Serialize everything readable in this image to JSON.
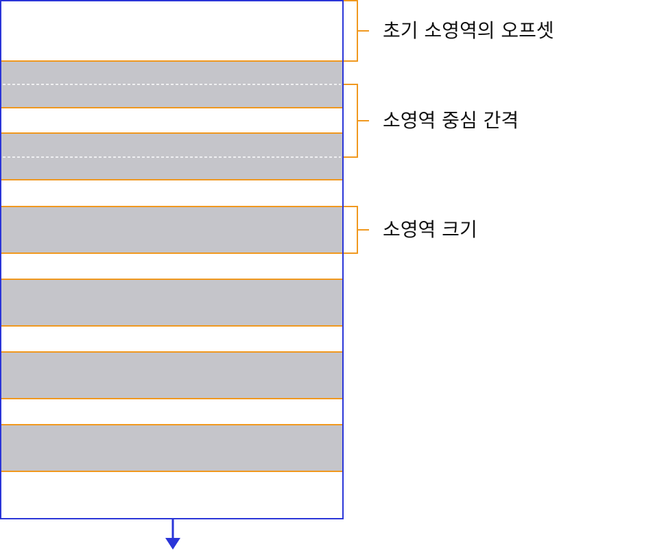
{
  "annotations": [
    {
      "label": "초기 소영역의 오프셋"
    },
    {
      "label": "소영역 중심 간격"
    },
    {
      "label": "소영역 크기"
    }
  ]
}
